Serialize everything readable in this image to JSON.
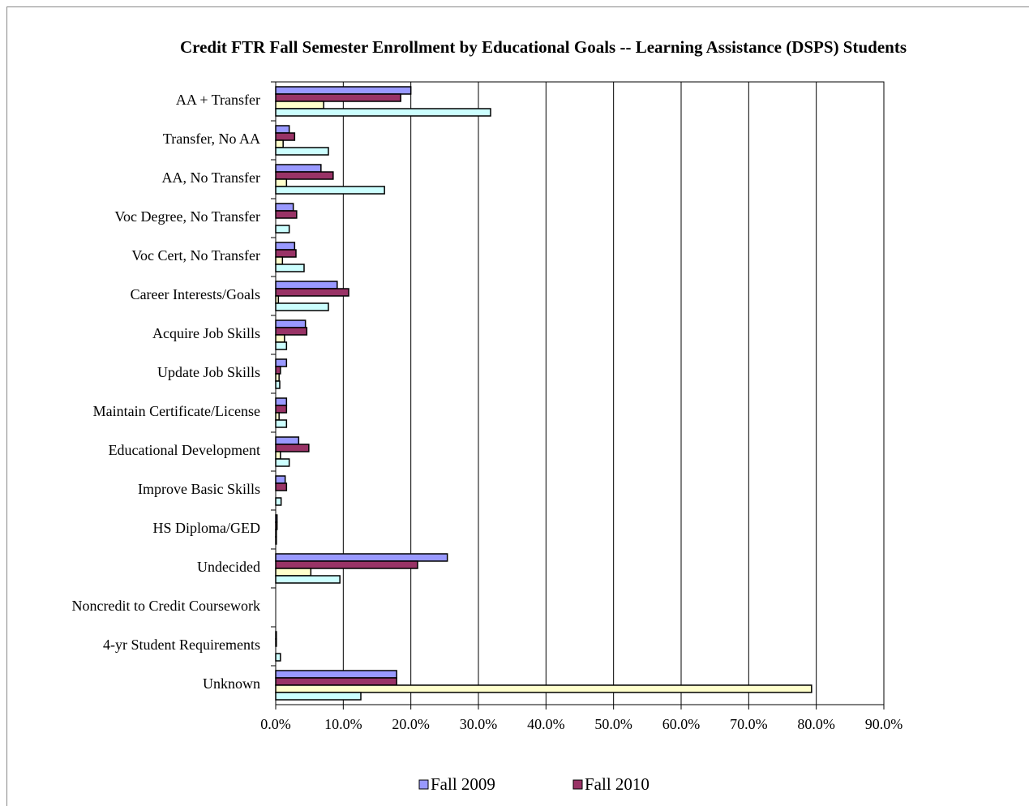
{
  "chart_data": {
    "type": "hbar",
    "title": "Credit FTR Fall Semester Enrollment by Educational Goals -- Learning Assistance (DSPS) Students",
    "categories": [
      "AA + Transfer",
      "Transfer, No AA",
      "AA, No Transfer",
      "Voc Degree, No Transfer",
      "Voc Cert, No Transfer",
      "Career Interests/Goals",
      "Acquire Job Skills",
      "Update Job Skills",
      "Maintain Certificate/License",
      "Educational Development",
      "Improve Basic Skills",
      "HS Diploma/GED",
      "Undecided",
      "Noncredit to Credit Coursework",
      "4-yr Student Requirements",
      "Unknown"
    ],
    "series": [
      {
        "name": "Fall 2009",
        "color": "#9999ff",
        "values": [
          20.0,
          2.0,
          6.7,
          2.6,
          2.8,
          9.1,
          4.4,
          1.6,
          1.6,
          3.4,
          1.4,
          0.2,
          25.4,
          0,
          0.1,
          17.9
        ]
      },
      {
        "name": "Fall 2010",
        "color": "#993366",
        "values": [
          18.5,
          2.8,
          8.5,
          3.1,
          3.0,
          10.8,
          4.6,
          0.7,
          1.6,
          4.9,
          1.6,
          0.2,
          21.0,
          0,
          0.1,
          17.9
        ]
      },
      {
        "color": "#ffffcc",
        "values": [
          7.1,
          1.1,
          1.6,
          0,
          1.0,
          0.4,
          1.3,
          0.5,
          0.5,
          0.7,
          0,
          0.1,
          5.2,
          0,
          0,
          79.3
        ]
      },
      {
        "color": "#ccffff",
        "values": [
          31.8,
          7.8,
          16.1,
          2.0,
          4.2,
          7.8,
          1.6,
          0.6,
          1.6,
          2.0,
          0.8,
          0.1,
          9.5,
          0,
          0.7,
          12.6
        ]
      }
    ],
    "xlim": [
      0,
      90
    ],
    "xticks": [
      {
        "value": 0,
        "label": "0.0%"
      },
      {
        "value": 10,
        "label": "10.0%"
      },
      {
        "value": 20,
        "label": "20.0%"
      },
      {
        "value": 30,
        "label": "30.0%"
      },
      {
        "value": 40,
        "label": "40.0%"
      },
      {
        "value": 50,
        "label": "50.0%"
      },
      {
        "value": 60,
        "label": "60.0%"
      },
      {
        "value": 70,
        "label": "70.0%"
      },
      {
        "value": 80,
        "label": "80.0%"
      },
      {
        "value": 90,
        "label": "90.0%"
      }
    ],
    "grid": true,
    "legend": "bottom"
  }
}
